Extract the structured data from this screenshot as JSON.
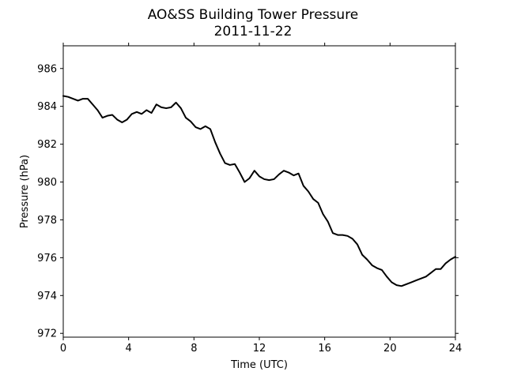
{
  "chart_data": {
    "type": "line",
    "title": "AO&SS Building Tower Pressure",
    "subtitle": "2011-11-22",
    "xlabel": "Time (UTC)",
    "ylabel": "Pressure (hPa)",
    "xlim": [
      0,
      24
    ],
    "ylim": [
      971.8,
      987.2
    ],
    "xticks": [
      0,
      4,
      8,
      12,
      16,
      20,
      24
    ],
    "yticks": [
      972,
      974,
      976,
      978,
      980,
      982,
      984,
      986
    ],
    "grid": false,
    "line_color": "#000000",
    "series": [
      {
        "x": [
          0,
          0.3,
          0.6,
          0.9,
          1.2,
          1.5,
          1.8,
          2.1,
          2.4,
          2.7,
          3.0,
          3.3,
          3.6,
          3.9,
          4.2,
          4.5,
          4.8,
          5.1,
          5.4,
          5.7,
          6.0,
          6.3,
          6.6,
          6.9,
          7.2,
          7.5,
          7.8,
          8.1,
          8.4,
          8.7,
          9.0,
          9.3,
          9.6,
          9.9,
          10.2,
          10.5,
          10.8,
          11.1,
          11.4,
          11.7,
          12.0,
          12.3,
          12.6,
          12.9,
          13.2,
          13.5,
          13.8,
          14.1,
          14.4,
          14.7,
          15.0,
          15.3,
          15.6,
          15.9,
          16.2,
          16.5,
          16.8,
          17.1,
          17.4,
          17.7,
          18.0,
          18.3,
          18.6,
          18.9,
          19.2,
          19.5,
          19.8,
          20.1,
          20.4,
          20.7,
          21.0,
          21.3,
          21.6,
          21.9,
          22.2,
          22.5,
          22.8,
          23.1,
          23.4,
          23.7,
          24.0
        ],
        "y": [
          984.55,
          984.5,
          984.4,
          984.3,
          984.4,
          984.4,
          984.1,
          983.8,
          983.4,
          983.5,
          983.55,
          983.3,
          983.15,
          983.3,
          983.6,
          983.7,
          983.6,
          983.8,
          983.65,
          984.1,
          983.95,
          983.9,
          983.95,
          984.2,
          983.9,
          983.4,
          983.2,
          982.9,
          982.8,
          982.95,
          982.8,
          982.1,
          981.5,
          981.0,
          980.9,
          980.95,
          980.5,
          980.0,
          980.2,
          980.6,
          980.3,
          980.15,
          980.1,
          980.15,
          980.4,
          980.6,
          980.5,
          980.35,
          980.45,
          979.8,
          979.5,
          979.1,
          978.9,
          978.3,
          977.9,
          977.3,
          977.2,
          977.2,
          977.15,
          977.0,
          976.7,
          976.15,
          975.9,
          975.6,
          975.45,
          975.35,
          975.0,
          974.7,
          974.55,
          974.5,
          974.6,
          974.7,
          974.8,
          974.9,
          975.0,
          975.2,
          975.4,
          975.4,
          975.7,
          975.9,
          976.05
        ]
      }
    ]
  }
}
